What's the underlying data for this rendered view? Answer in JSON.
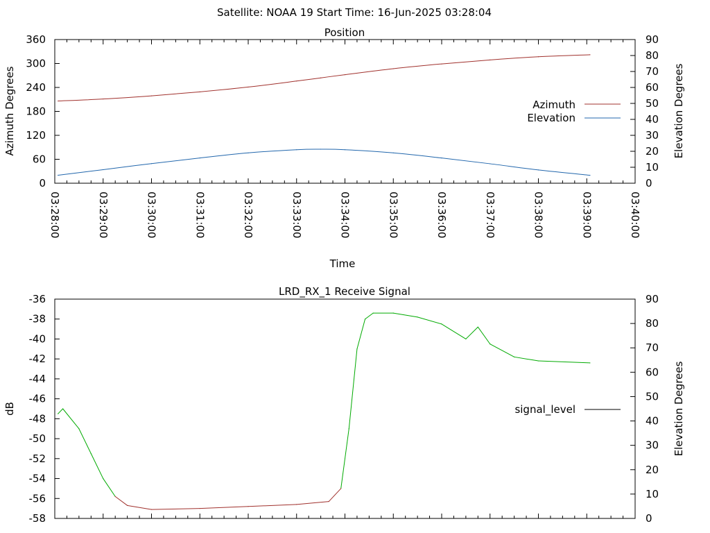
{
  "suptitle": "Satellite: NOAA 19    Start Time: 16-Jun-2025 03:28:04",
  "chart_data": [
    {
      "type": "line",
      "title": "Position",
      "xlabel": "Time",
      "ylabel": "Azimuth Degrees",
      "y2label": "Elevation Degrees",
      "xlim": [
        "03:28:00",
        "03:40:00"
      ],
      "xticks": [
        "03:28:00",
        "03:29:00",
        "03:30:00",
        "03:31:00",
        "03:32:00",
        "03:33:00",
        "03:34:00",
        "03:35:00",
        "03:36:00",
        "03:37:00",
        "03:38:00",
        "03:39:00",
        "03:40:00"
      ],
      "ylim": [
        0,
        360
      ],
      "yticks": [
        "0",
        "60",
        "120",
        "180",
        "240",
        "300",
        "360"
      ],
      "y2lim": [
        0,
        90
      ],
      "y2ticks": [
        "0",
        "10",
        "20",
        "30",
        "40",
        "50",
        "60",
        "70",
        "80",
        "90"
      ],
      "legend_position": "right",
      "x": [
        "03:28:04",
        "03:29:00",
        "03:30:00",
        "03:31:00",
        "03:32:00",
        "03:33:00",
        "03:33:30",
        "03:34:00",
        "03:35:00",
        "03:36:00",
        "03:37:00",
        "03:38:00",
        "03:39:04"
      ],
      "series": [
        {
          "name": "Azimuth",
          "axis": "left",
          "color": "#a0302c",
          "values": [
            206,
            211,
            219,
            229,
            241,
            256,
            264,
            272,
            287,
            299,
            309,
            317,
            322
          ]
        },
        {
          "name": "Elevation",
          "axis": "right",
          "color": "#2166ac",
          "values": [
            5,
            8.5,
            12.3,
            15.8,
            19,
            21,
            21.3,
            21,
            19,
            15.8,
            12.2,
            8.3,
            5
          ]
        }
      ]
    },
    {
      "type": "line",
      "title": "LRD_RX_1 Receive Signal",
      "ylabel": "dB",
      "y2label": "Elevation Degrees",
      "xlim": [
        "03:28:00",
        "03:40:00"
      ],
      "ylim": [
        -58,
        -36
      ],
      "yticks": [
        "-58",
        "-56",
        "-54",
        "-52",
        "-50",
        "-48",
        "-46",
        "-44",
        "-42",
        "-40",
        "-38",
        "-36"
      ],
      "y2lim": [
        0,
        90
      ],
      "y2ticks": [
        "0",
        "10",
        "20",
        "30",
        "40",
        "50",
        "60",
        "70",
        "80",
        "90"
      ],
      "legend_position": "right",
      "x": [
        "03:28:04",
        "03:28:10",
        "03:28:30",
        "03:28:45",
        "03:29:00",
        "03:29:15",
        "03:29:30",
        "03:30:00",
        "03:31:00",
        "03:32:00",
        "03:33:00",
        "03:33:40",
        "03:33:55",
        "03:34:05",
        "03:34:15",
        "03:34:25",
        "03:34:35",
        "03:35:00",
        "03:35:30",
        "03:36:00",
        "03:36:30",
        "03:36:45",
        "03:37:00",
        "03:37:30",
        "03:38:00",
        "03:39:04"
      ],
      "series": [
        {
          "name": "signal_level",
          "legend_color": "#000000",
          "values": [
            -47.5,
            -47,
            -49,
            -51.5,
            -54,
            -55.8,
            -56.7,
            -57.1,
            -57,
            -56.8,
            -56.6,
            -56.3,
            -55,
            -49,
            -41,
            -38,
            -37.4,
            -37.4,
            -37.8,
            -38.5,
            -40,
            -38.8,
            -40.5,
            -41.8,
            -42.2,
            -42.4
          ]
        }
      ],
      "segment_colors": {
        "low": "#a0302c",
        "high": "#00aa00"
      }
    }
  ]
}
